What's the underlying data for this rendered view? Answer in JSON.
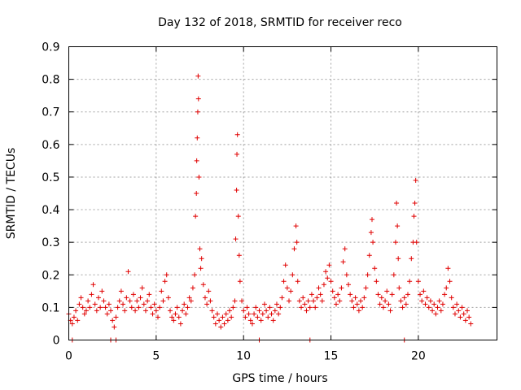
{
  "chart_data": {
    "type": "scatter",
    "title": "Day 132 of 2018, SRMTID for receiver reco",
    "xlabel": "GPS time / hours",
    "ylabel": "SRMTID / TECUs",
    "xlim": [
      0,
      24.5
    ],
    "ylim": [
      0,
      0.9
    ],
    "xticks": [
      0,
      5,
      10,
      15,
      20
    ],
    "xtick_labels": [
      "0",
      "5",
      "10",
      "15",
      "20"
    ],
    "yticks": [
      0,
      0.1,
      0.2,
      0.3,
      0.4,
      0.5,
      0.6,
      0.7,
      0.8,
      0.9
    ],
    "ytick_labels": [
      "0",
      "0.1",
      "0.2",
      "0.3",
      "0.4",
      "0.5",
      "0.6",
      "0.7",
      "0.8",
      "0.9"
    ],
    "grid": true,
    "marker": "+",
    "series": [
      {
        "name": "SRMTID",
        "color": "#e00000",
        "points": [
          [
            0.0,
            0.08
          ],
          [
            0.1,
            0.06
          ],
          [
            0.2,
            0.05
          ],
          [
            0.3,
            0.07
          ],
          [
            0.4,
            0.09
          ],
          [
            0.5,
            0.06
          ],
          [
            0.6,
            0.11
          ],
          [
            0.7,
            0.13
          ],
          [
            0.8,
            0.1
          ],
          [
            0.9,
            0.08
          ],
          [
            1.0,
            0.09
          ],
          [
            1.1,
            0.12
          ],
          [
            1.2,
            0.1
          ],
          [
            1.3,
            0.14
          ],
          [
            1.4,
            0.17
          ],
          [
            1.5,
            0.11
          ],
          [
            1.6,
            0.09
          ],
          [
            1.7,
            0.13
          ],
          [
            1.8,
            0.1
          ],
          [
            1.9,
            0.15
          ],
          [
            2.0,
            0.12
          ],
          [
            2.1,
            0.1
          ],
          [
            2.2,
            0.08
          ],
          [
            2.3,
            0.11
          ],
          [
            2.4,
            0.09
          ],
          [
            2.5,
            0.06
          ],
          [
            2.6,
            0.04
          ],
          [
            2.7,
            0.07
          ],
          [
            2.8,
            0.1
          ],
          [
            2.9,
            0.12
          ],
          [
            3.0,
            0.15
          ],
          [
            3.1,
            0.11
          ],
          [
            3.2,
            0.09
          ],
          [
            3.3,
            0.13
          ],
          [
            3.4,
            0.21
          ],
          [
            3.5,
            0.12
          ],
          [
            3.6,
            0.1
          ],
          [
            3.7,
            0.14
          ],
          [
            3.8,
            0.09
          ],
          [
            3.9,
            0.12
          ],
          [
            4.0,
            0.1
          ],
          [
            4.1,
            0.13
          ],
          [
            4.2,
            0.16
          ],
          [
            4.3,
            0.11
          ],
          [
            4.4,
            0.09
          ],
          [
            4.5,
            0.12
          ],
          [
            4.6,
            0.14
          ],
          [
            4.7,
            0.1
          ],
          [
            4.8,
            0.08
          ],
          [
            4.9,
            0.11
          ],
          [
            5.0,
            0.09
          ],
          [
            5.1,
            0.07
          ],
          [
            5.2,
            0.1
          ],
          [
            5.3,
            0.15
          ],
          [
            5.4,
            0.12
          ],
          [
            5.5,
            0.18
          ],
          [
            5.6,
            0.2
          ],
          [
            5.7,
            0.13
          ],
          [
            5.8,
            0.09
          ],
          [
            5.9,
            0.07
          ],
          [
            6.0,
            0.06
          ],
          [
            6.1,
            0.08
          ],
          [
            6.2,
            0.1
          ],
          [
            6.3,
            0.07
          ],
          [
            6.4,
            0.05
          ],
          [
            6.5,
            0.09
          ],
          [
            6.6,
            0.11
          ],
          [
            6.7,
            0.08
          ],
          [
            6.8,
            0.1
          ],
          [
            6.9,
            0.13
          ],
          [
            7.0,
            0.12
          ],
          [
            7.1,
            0.16
          ],
          [
            7.2,
            0.2
          ],
          [
            7.25,
            0.38
          ],
          [
            7.3,
            0.45
          ],
          [
            7.32,
            0.55
          ],
          [
            7.35,
            0.62
          ],
          [
            7.38,
            0.7
          ],
          [
            7.4,
            0.81
          ],
          [
            7.42,
            0.74
          ],
          [
            7.45,
            0.5
          ],
          [
            7.5,
            0.28
          ],
          [
            7.55,
            0.22
          ],
          [
            7.6,
            0.25
          ],
          [
            7.7,
            0.17
          ],
          [
            7.8,
            0.13
          ],
          [
            7.9,
            0.11
          ],
          [
            8.0,
            0.15
          ],
          [
            8.1,
            0.12
          ],
          [
            8.2,
            0.09
          ],
          [
            8.3,
            0.07
          ],
          [
            8.4,
            0.05
          ],
          [
            8.5,
            0.08
          ],
          [
            8.6,
            0.06
          ],
          [
            8.7,
            0.04
          ],
          [
            8.8,
            0.07
          ],
          [
            8.9,
            0.05
          ],
          [
            9.0,
            0.08
          ],
          [
            9.1,
            0.06
          ],
          [
            9.2,
            0.09
          ],
          [
            9.3,
            0.07
          ],
          [
            9.4,
            0.1
          ],
          [
            9.5,
            0.12
          ],
          [
            9.55,
            0.31
          ],
          [
            9.6,
            0.46
          ],
          [
            9.62,
            0.57
          ],
          [
            9.65,
            0.63
          ],
          [
            9.7,
            0.38
          ],
          [
            9.75,
            0.26
          ],
          [
            9.8,
            0.18
          ],
          [
            9.9,
            0.12
          ],
          [
            10.0,
            0.09
          ],
          [
            10.1,
            0.07
          ],
          [
            10.2,
            0.1
          ],
          [
            10.3,
            0.08
          ],
          [
            10.4,
            0.06
          ],
          [
            10.5,
            0.05
          ],
          [
            10.6,
            0.08
          ],
          [
            10.7,
            0.1
          ],
          [
            10.8,
            0.07
          ],
          [
            10.9,
            0.09
          ],
          [
            11.0,
            0.06
          ],
          [
            11.1,
            0.08
          ],
          [
            11.2,
            0.11
          ],
          [
            11.3,
            0.09
          ],
          [
            11.4,
            0.07
          ],
          [
            11.5,
            0.1
          ],
          [
            11.6,
            0.08
          ],
          [
            11.7,
            0.06
          ],
          [
            11.8,
            0.09
          ],
          [
            11.9,
            0.11
          ],
          [
            12.0,
            0.08
          ],
          [
            12.1,
            0.1
          ],
          [
            12.2,
            0.13
          ],
          [
            12.3,
            0.18
          ],
          [
            12.4,
            0.23
          ],
          [
            12.5,
            0.16
          ],
          [
            12.6,
            0.12
          ],
          [
            12.7,
            0.15
          ],
          [
            12.8,
            0.2
          ],
          [
            12.9,
            0.28
          ],
          [
            13.0,
            0.35
          ],
          [
            13.05,
            0.3
          ],
          [
            13.1,
            0.18
          ],
          [
            13.2,
            0.12
          ],
          [
            13.3,
            0.1
          ],
          [
            13.4,
            0.13
          ],
          [
            13.5,
            0.11
          ],
          [
            13.6,
            0.09
          ],
          [
            13.7,
            0.12
          ],
          [
            13.8,
            0.1
          ],
          [
            13.9,
            0.14
          ],
          [
            14.0,
            0.12
          ],
          [
            14.1,
            0.1
          ],
          [
            14.2,
            0.13
          ],
          [
            14.3,
            0.16
          ],
          [
            14.4,
            0.14
          ],
          [
            14.5,
            0.12
          ],
          [
            14.6,
            0.17
          ],
          [
            14.7,
            0.21
          ],
          [
            14.8,
            0.19
          ],
          [
            14.9,
            0.23
          ],
          [
            15.0,
            0.18
          ],
          [
            15.1,
            0.15
          ],
          [
            15.2,
            0.13
          ],
          [
            15.3,
            0.11
          ],
          [
            15.4,
            0.14
          ],
          [
            15.5,
            0.12
          ],
          [
            15.6,
            0.16
          ],
          [
            15.7,
            0.24
          ],
          [
            15.8,
            0.28
          ],
          [
            15.9,
            0.2
          ],
          [
            16.0,
            0.17
          ],
          [
            16.1,
            0.14
          ],
          [
            16.2,
            0.12
          ],
          [
            16.3,
            0.1
          ],
          [
            16.4,
            0.13
          ],
          [
            16.5,
            0.11
          ],
          [
            16.6,
            0.09
          ],
          [
            16.7,
            0.12
          ],
          [
            16.8,
            0.1
          ],
          [
            16.9,
            0.13
          ],
          [
            17.0,
            0.16
          ],
          [
            17.1,
            0.2
          ],
          [
            17.2,
            0.26
          ],
          [
            17.3,
            0.33
          ],
          [
            17.35,
            0.37
          ],
          [
            17.4,
            0.3
          ],
          [
            17.5,
            0.22
          ],
          [
            17.6,
            0.18
          ],
          [
            17.7,
            0.14
          ],
          [
            17.8,
            0.11
          ],
          [
            17.9,
            0.13
          ],
          [
            18.0,
            0.1
          ],
          [
            18.1,
            0.12
          ],
          [
            18.2,
            0.15
          ],
          [
            18.3,
            0.11
          ],
          [
            18.4,
            0.09
          ],
          [
            18.5,
            0.14
          ],
          [
            18.6,
            0.2
          ],
          [
            18.7,
            0.3
          ],
          [
            18.75,
            0.42
          ],
          [
            18.8,
            0.35
          ],
          [
            18.85,
            0.25
          ],
          [
            18.9,
            0.16
          ],
          [
            19.0,
            0.12
          ],
          [
            19.1,
            0.1
          ],
          [
            19.2,
            0.13
          ],
          [
            19.3,
            0.11
          ],
          [
            19.4,
            0.14
          ],
          [
            19.5,
            0.18
          ],
          [
            19.6,
            0.25
          ],
          [
            19.7,
            0.3
          ],
          [
            19.75,
            0.38
          ],
          [
            19.8,
            0.42
          ],
          [
            19.85,
            0.49
          ],
          [
            19.9,
            0.3
          ],
          [
            20.0,
            0.18
          ],
          [
            20.1,
            0.14
          ],
          [
            20.2,
            0.12
          ],
          [
            20.3,
            0.15
          ],
          [
            20.4,
            0.11
          ],
          [
            20.5,
            0.13
          ],
          [
            20.6,
            0.1
          ],
          [
            20.7,
            0.12
          ],
          [
            20.8,
            0.09
          ],
          [
            20.9,
            0.11
          ],
          [
            21.0,
            0.08
          ],
          [
            21.1,
            0.1
          ],
          [
            21.2,
            0.12
          ],
          [
            21.3,
            0.09
          ],
          [
            21.4,
            0.11
          ],
          [
            21.5,
            0.14
          ],
          [
            21.6,
            0.16
          ],
          [
            21.7,
            0.22
          ],
          [
            21.8,
            0.18
          ],
          [
            21.9,
            0.13
          ],
          [
            22.0,
            0.1
          ],
          [
            22.1,
            0.08
          ],
          [
            22.2,
            0.11
          ],
          [
            22.3,
            0.09
          ],
          [
            22.4,
            0.07
          ],
          [
            22.5,
            0.1
          ],
          [
            22.6,
            0.08
          ],
          [
            22.7,
            0.06
          ],
          [
            22.8,
            0.09
          ],
          [
            22.9,
            0.07
          ],
          [
            23.0,
            0.05
          ],
          [
            2.4,
            0.0
          ],
          [
            2.7,
            0.0
          ],
          [
            13.8,
            0.0
          ],
          [
            19.2,
            0.0
          ],
          [
            0.2,
            0.0
          ],
          [
            10.9,
            0.0
          ]
        ]
      }
    ]
  }
}
